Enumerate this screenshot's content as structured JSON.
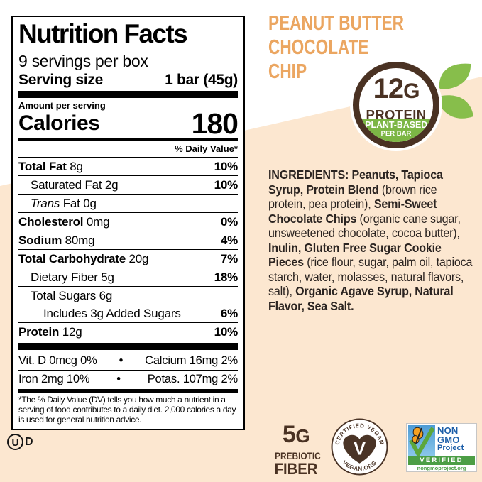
{
  "colors": {
    "peach_background": "#fce7d0",
    "accent_orange": "#eba661",
    "badge_brown": "#4a3223",
    "badge_green": "#7cb645",
    "nongmo_blue": "#1d5fa9",
    "nongmo_green": "#4c9e45",
    "butterfly_orange": "#f6a01f"
  },
  "nutrition_label": {
    "title": "Nutrition Facts",
    "servings_per_container": "9 servings per box",
    "serving_size_label": "Serving size",
    "serving_size_value": "1 bar (45g)",
    "amount_per_serving": "Amount per serving",
    "calories_label": "Calories",
    "calories_value": "180",
    "daily_value_header": "% Daily Value*",
    "rows": [
      {
        "name": "Total Fat",
        "amount": "8g",
        "dv": "10%",
        "bold": true,
        "italic": false,
        "indent": 0,
        "rule_indent": false
      },
      {
        "name": "Saturated Fat",
        "amount": "2g",
        "dv": "10%",
        "bold": false,
        "italic": false,
        "indent": 1,
        "rule_indent": false
      },
      {
        "name": "Trans",
        "amount": "Fat 0g",
        "dv": "",
        "bold": false,
        "italic": true,
        "indent": 1,
        "rule_indent": false
      },
      {
        "name": "Cholesterol",
        "amount": "0mg",
        "dv": "0%",
        "bold": true,
        "italic": false,
        "indent": 0,
        "rule_indent": false
      },
      {
        "name": "Sodium",
        "amount": "80mg",
        "dv": "4%",
        "bold": true,
        "italic": false,
        "indent": 0,
        "rule_indent": false
      },
      {
        "name": "Total Carbohydrate",
        "amount": "20g",
        "dv": "7%",
        "bold": true,
        "italic": false,
        "indent": 0,
        "rule_indent": false
      },
      {
        "name": "Dietary Fiber",
        "amount": "5g",
        "dv": "18%",
        "bold": false,
        "italic": false,
        "indent": 1,
        "rule_indent": false
      },
      {
        "name": "Total Sugars",
        "amount": "6g",
        "dv": "",
        "bold": false,
        "italic": false,
        "indent": 1,
        "rule_indent": false
      },
      {
        "name": "Includes 3g Added Sugars",
        "amount": "",
        "dv": "6%",
        "bold": false,
        "italic": false,
        "indent": 2,
        "rule_indent": true
      },
      {
        "name": "Protein",
        "amount": "12g",
        "dv": "10%",
        "bold": true,
        "italic": false,
        "indent": 0,
        "rule_indent": false
      }
    ],
    "minerals": [
      {
        "left": "Vit. D 0mcg 0%",
        "bullet": "•",
        "right": "Calcium 16mg 2%"
      },
      {
        "left": "Iron 2mg 10%",
        "bullet": "•",
        "right": "Potas. 107mg 2%"
      }
    ],
    "footnote": "*The % Daily Value (DV) tells you how much a nutrient in a serving of food contributes to a daily diet. 2,000 calories a day is used for general nutrition advice."
  },
  "kosher": {
    "circle_letter": "U",
    "suffix": "D"
  },
  "product": {
    "title_lines": [
      "PEANUT BUTTER",
      "CHOCOLATE",
      "CHIP"
    ]
  },
  "protein_badge": {
    "number": "12",
    "unit": "G",
    "label": "PROTEIN",
    "banner_line1": "PLANT-BASED",
    "banner_line2": "PER BAR"
  },
  "ingredients": {
    "segments": [
      {
        "text": "INGREDIENTS: Peanuts, Tapioca Syrup, Protein Blend ",
        "bold": true
      },
      {
        "text": "(brown rice protein, pea protein), ",
        "bold": false
      },
      {
        "text": "Semi-Sweet Chocolate Chips ",
        "bold": true
      },
      {
        "text": "(organic cane sugar, unsweetened chocolate, cocoa butter), ",
        "bold": false
      },
      {
        "text": "Inulin, Gluten Free Sugar Cookie Pieces ",
        "bold": true
      },
      {
        "text": "(rice flour, sugar, palm oil, tapioca starch, water, molasses, natural flavors, salt), ",
        "bold": false
      },
      {
        "text": "Organic Agave Syrup, Natural Flavor, Sea Salt.",
        "bold": true
      }
    ]
  },
  "fiber_badge": {
    "number": "5",
    "unit": "G",
    "line1": "PREBIOTIC",
    "line2": "FIBER"
  },
  "vegan_seal": {
    "arc_top": "CERTIFIED VEGAN",
    "arc_bottom": "VEGAN.ORG",
    "center_letter": "V"
  },
  "non_gmo": {
    "line1": "NON",
    "line2": "GMO",
    "line3": "Project",
    "verified": "VERIFIED",
    "url": "nongmoproject.org"
  }
}
